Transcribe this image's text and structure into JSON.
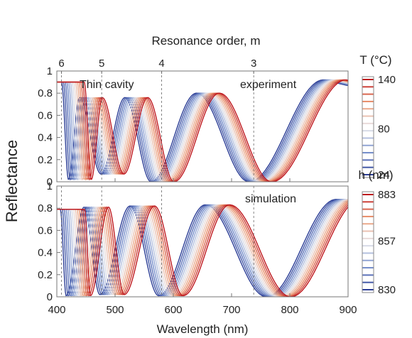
{
  "chart_data": {
    "type": "line",
    "top_axis": {
      "label": "Resonance order, m",
      "orders": [
        {
          "label": "6",
          "x": 408
        },
        {
          "label": "5",
          "x": 477
        },
        {
          "label": "4",
          "x": 580
        },
        {
          "label": "3",
          "x": 738
        }
      ]
    },
    "xlabel": "Wavelength (nm)",
    "ylabel": "Reflectance",
    "xlim": [
      400,
      900
    ],
    "xticks": [
      "400",
      "500",
      "600",
      "700",
      "800",
      "900"
    ],
    "yticks": [
      "0",
      "0.2",
      "0.4",
      "0.6",
      "0.8",
      "1"
    ],
    "panels": [
      {
        "name": "experiment",
        "annotations": [
          "Thin cavity",
          "experiment"
        ],
        "ylim": [
          0,
          1
        ],
        "colorbar": {
          "title": "T (°C)",
          "ticks": [
            "140",
            "80",
            "24"
          ],
          "range": [
            24,
            140
          ],
          "curves": 14
        },
        "x_shift_per_step": 3.0,
        "peaks_lowest": [
          {
            "x": 408,
            "y": 0.9
          },
          {
            "x": 439,
            "y": 0.76
          },
          {
            "x": 517,
            "y": 0.76
          },
          {
            "x": 640,
            "y": 0.8
          },
          {
            "x": 858,
            "y": 0.92
          }
        ],
        "troughs_lowest": [
          {
            "x": 420,
            "y": 0.02
          },
          {
            "x": 476,
            "y": 0.07
          },
          {
            "x": 562,
            "y": 0.0
          },
          {
            "x": 730,
            "y": 0.0
          }
        ]
      },
      {
        "name": "simulation",
        "annotations": [
          "simulation"
        ],
        "ylim": [
          0,
          1
        ],
        "colorbar": {
          "title": "h (nm)",
          "ticks": [
            "883",
            "857",
            "830"
          ],
          "range": [
            830,
            883
          ],
          "curves": 14
        },
        "x_shift_per_step": 3.2,
        "peaks_lowest": [
          {
            "x": 406,
            "y": 0.79
          },
          {
            "x": 447,
            "y": 0.81
          },
          {
            "x": 526,
            "y": 0.82
          },
          {
            "x": 655,
            "y": 0.83
          },
          {
            "x": 880,
            "y": 0.88
          }
        ],
        "troughs_lowest": [
          {
            "x": 416,
            "y": 0.01
          },
          {
            "x": 474,
            "y": 0.02
          },
          {
            "x": 575,
            "y": 0.01
          },
          {
            "x": 760,
            "y": 0.0
          }
        ]
      }
    ]
  }
}
